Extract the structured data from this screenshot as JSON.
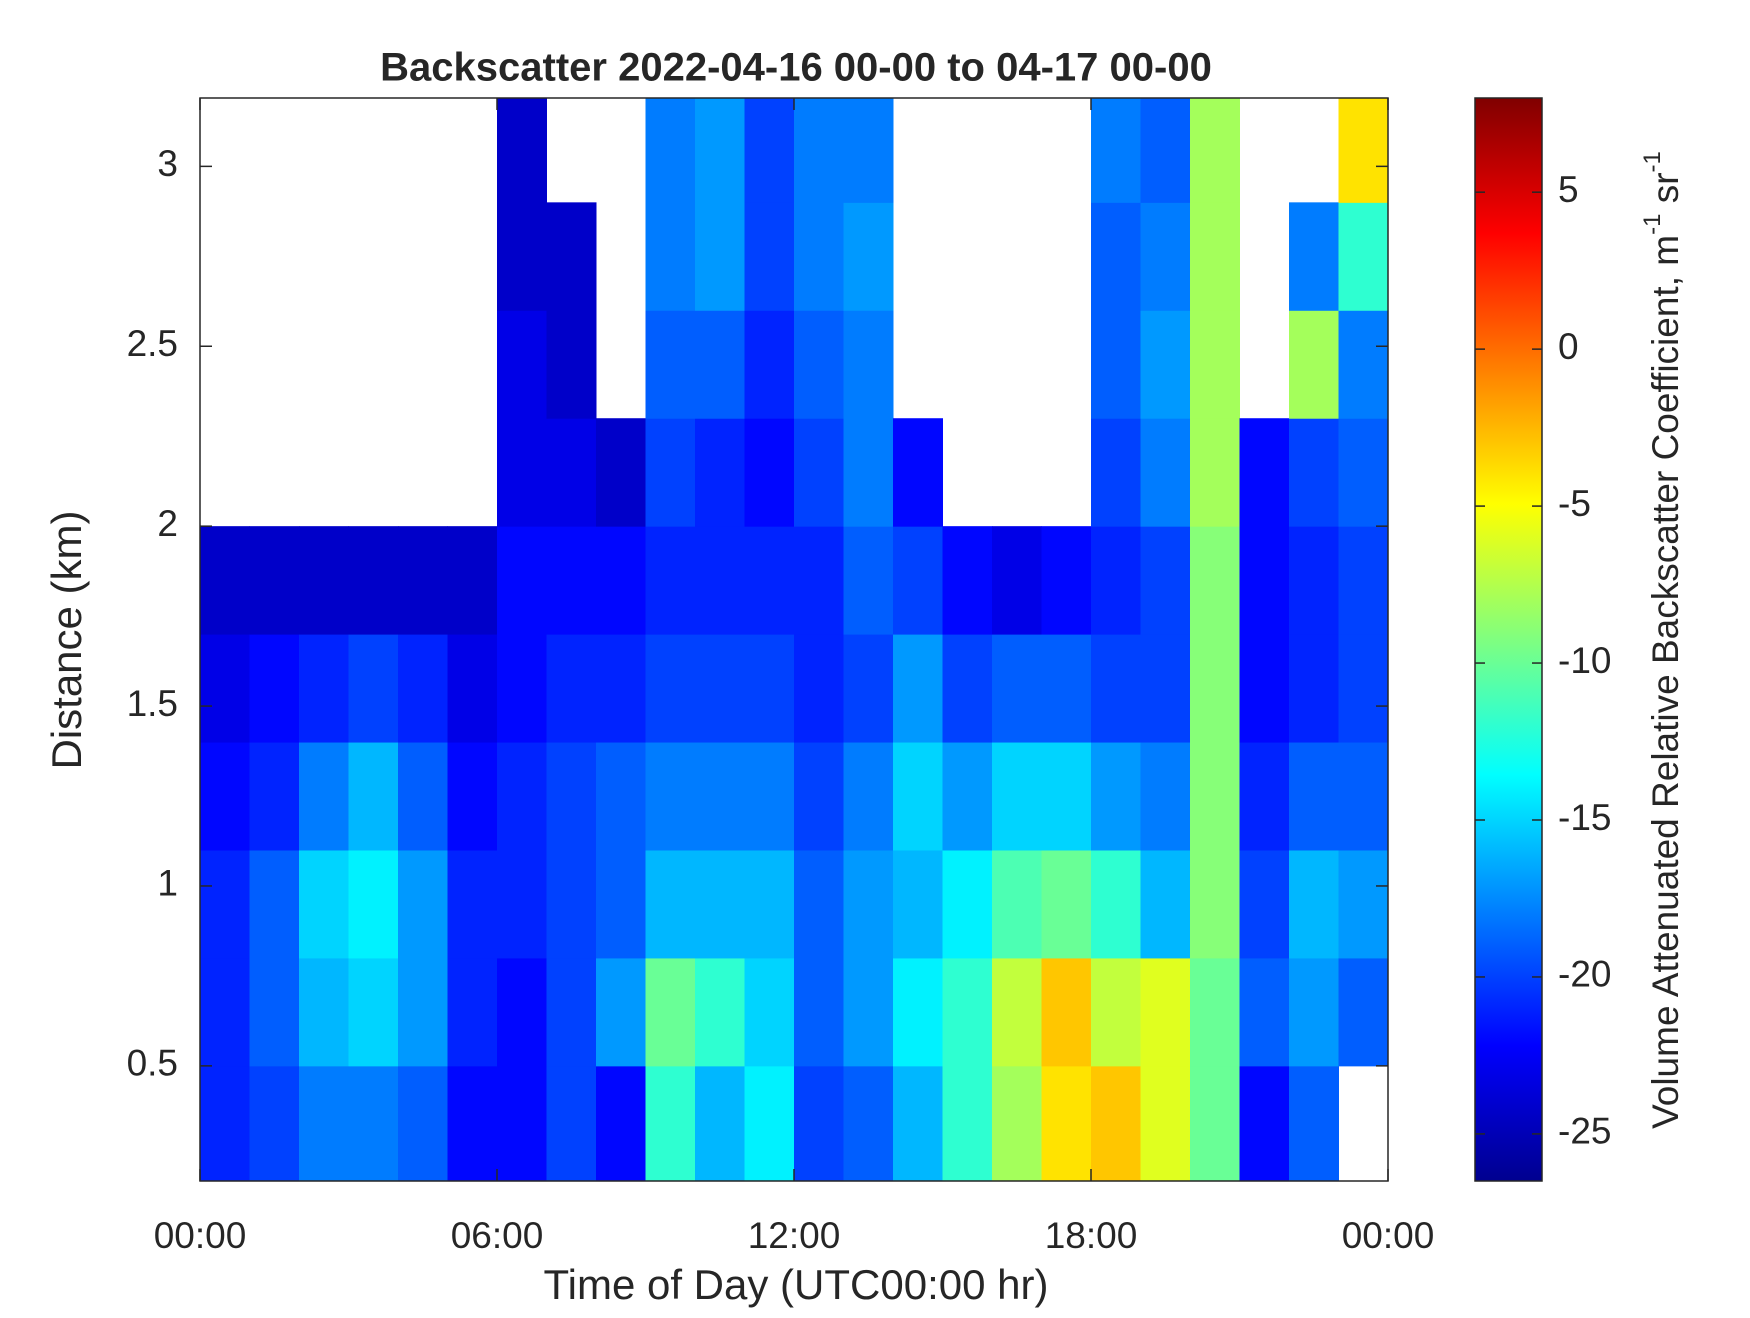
{
  "chart_data": {
    "type": "heatmap",
    "title": "Backscatter 2022-04-16 00-00 to 04-17 00-00",
    "xlabel": "Time of Day (UTC00:00 hr)",
    "ylabel": "Distance (km)",
    "colorbar_label": [
      "Volume Attenuated Relative Backscatter Coefficient, m",
      "-1",
      " sr",
      "-1"
    ],
    "colormap": "jet",
    "xlim": [
      0,
      24
    ],
    "ylim": [
      0.18,
      3.19
    ],
    "clim": [
      -26.5,
      8
    ],
    "xticks": [
      {
        "value": 0,
        "label": "00:00"
      },
      {
        "value": 6,
        "label": "06:00"
      },
      {
        "value": 12,
        "label": "12:00"
      },
      {
        "value": 18,
        "label": "18:00"
      },
      {
        "value": 24,
        "label": "00:00"
      }
    ],
    "yticks": [
      0.5,
      1,
      1.5,
      2,
      2.5,
      3
    ],
    "cticks": [
      -25,
      -20,
      -15,
      -10,
      -5,
      0,
      5
    ],
    "x": [
      0.5,
      1.5,
      2.5,
      3.5,
      4.5,
      5.5,
      6.5,
      7.5,
      8.5,
      9.5,
      10.5,
      11.5,
      12.5,
      13.5,
      14.5,
      15.5,
      16.5,
      17.5,
      18.5,
      19.5,
      20.5,
      21.5,
      22.5,
      23.5
    ],
    "y": [
      0.35,
      0.65,
      0.95,
      1.25,
      1.55,
      1.85,
      2.15,
      2.45,
      2.75,
      3.05
    ],
    "z": [
      [
        -21,
        -21,
        -21,
        -22,
        -23,
        -24,
        null,
        null,
        null,
        null
      ],
      [
        -20,
        -19,
        -19,
        -21,
        -22,
        -24,
        null,
        null,
        null,
        null
      ],
      [
        -18,
        -16,
        -15,
        -18,
        -21,
        -24,
        null,
        null,
        null,
        null
      ],
      [
        -18,
        -15,
        -14,
        -16,
        -20,
        -24,
        null,
        null,
        null,
        null
      ],
      [
        -19,
        -17,
        -17,
        -19,
        -21,
        -24,
        null,
        null,
        null,
        null
      ],
      [
        -22,
        -21,
        -21,
        -22,
        -23,
        -24,
        null,
        null,
        null,
        null
      ],
      [
        -22,
        -22,
        -21,
        -21,
        -22,
        -22,
        -23,
        -23,
        -24,
        -24
      ],
      [
        -20,
        -20,
        -20,
        -20,
        -21,
        -22,
        -23,
        -24,
        -24,
        null
      ],
      [
        -22,
        -17,
        -19,
        -19,
        -21,
        -22,
        -24,
        null,
        null,
        null
      ],
      [
        -12,
        -10,
        -16,
        -18,
        -20,
        -21,
        -20,
        -19,
        -18,
        -18
      ],
      [
        -16,
        -12,
        -16,
        -18,
        -20,
        -21,
        -21,
        -19,
        -17,
        -17
      ],
      [
        -14,
        -15,
        -16,
        -18,
        -20,
        -21,
        -22,
        -21,
        -20,
        -20
      ],
      [
        -20,
        -19,
        -19,
        -20,
        -21,
        -21,
        -20,
        -19,
        -18,
        -18
      ],
      [
        -19,
        -17,
        -17,
        -18,
        -20,
        -19,
        -18,
        -18,
        -17,
        -18
      ],
      [
        -16,
        -14,
        -16,
        -15,
        -17,
        -20,
        -22,
        null,
        null,
        null
      ],
      [
        -12,
        -12,
        -14,
        -17,
        -20,
        -22,
        null,
        null,
        null,
        null
      ],
      [
        -8,
        -7,
        -11,
        -15,
        -19,
        -23,
        null,
        null,
        null,
        null
      ],
      [
        -4,
        -3,
        -10,
        -15,
        -19,
        -22,
        null,
        null,
        null,
        null
      ],
      [
        -3,
        -7,
        -12,
        -17,
        -20,
        -21,
        -20,
        -19,
        -19,
        -18
      ],
      [
        -6,
        -6,
        -16,
        -18,
        -20,
        -20,
        -18,
        -17,
        -18,
        -19
      ],
      [
        -10,
        -10,
        -9,
        -9,
        -9,
        -9,
        -8,
        -8,
        -8,
        -8
      ],
      [
        -22,
        -19,
        -20,
        -21,
        -22,
        -22,
        -22,
        null,
        null,
        null
      ],
      [
        -19,
        -17,
        -16,
        -19,
        -21,
        -21,
        -20,
        -8,
        -18,
        null
      ],
      [
        null,
        -19,
        -17,
        -19,
        -20,
        -20,
        -19,
        -18,
        -12,
        -4
      ]
    ]
  }
}
